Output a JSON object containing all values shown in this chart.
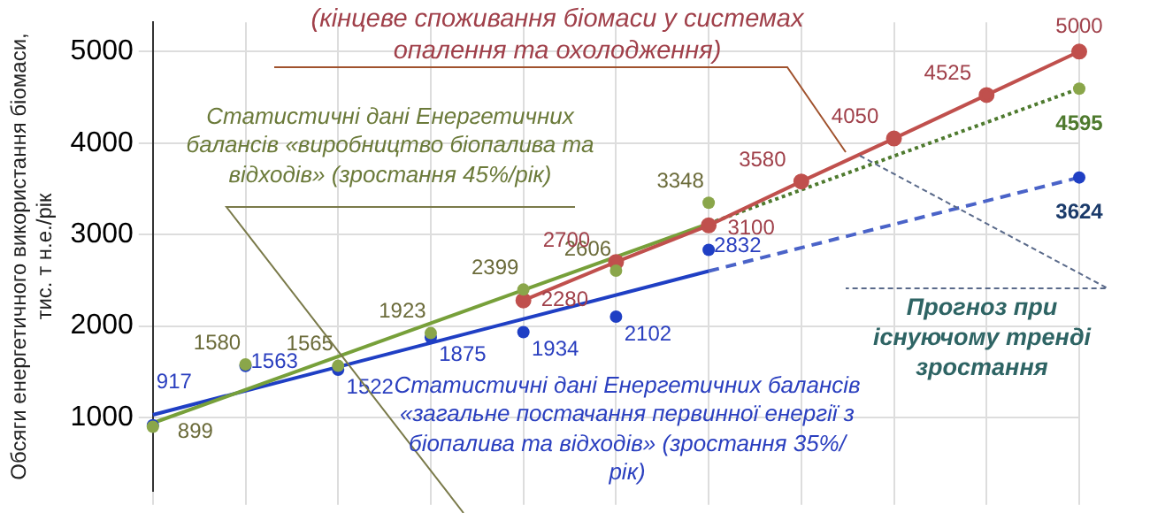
{
  "chart_data": {
    "type": "line",
    "ylabel": "Обсяги енергетичного використання біомаси, тис. т н.е./рік",
    "categories": [
      null,
      null,
      null,
      null,
      null,
      null,
      null,
      null,
      null,
      null,
      null
    ],
    "ylim": [
      200,
      5320
    ],
    "yticks": [
      1000,
      2000,
      3000,
      4000,
      5000
    ],
    "grid": true,
    "legend": false,
    "tick_labels": "y",
    "series": [
      {
        "type": "scatter",
        "color": "#8aa64a",
        "marker": "circle",
        "values": [
          899,
          1580,
          1565,
          1923,
          2399,
          2606,
          3348,
          null,
          null,
          null,
          4595
        ],
        "value_labels": [
          "899",
          "1580",
          "1565",
          "1923",
          "2399",
          "2606",
          "3348",
          null,
          null,
          null,
          "4595"
        ]
      },
      {
        "type": "scatter",
        "color": "#1f3fc4",
        "marker": "circle",
        "values": [
          917,
          1563,
          1522,
          1875,
          1934,
          2102,
          2832,
          null,
          null,
          null,
          3624
        ],
        "value_labels": [
          "917",
          "1563",
          "1522",
          "1875",
          "1934",
          "2102",
          "2832",
          null,
          null,
          null,
          "3624"
        ]
      },
      {
        "type": "line",
        "color": "#c0504d",
        "marker": "circle",
        "line_style": "solid",
        "values": [
          null,
          null,
          null,
          null,
          2280,
          2700,
          3100,
          3580,
          4050,
          4525,
          5000
        ],
        "value_labels": [
          null,
          null,
          null,
          null,
          "2280",
          "2700",
          "3100",
          "3580",
          "4050",
          "4525",
          "5000"
        ]
      },
      {
        "type": "line",
        "color": "#77a03a",
        "marker": "none",
        "line_style": "solid",
        "values": [
          940,
          null,
          null,
          null,
          null,
          null,
          3120,
          null,
          null,
          null,
          null
        ]
      },
      {
        "type": "line",
        "color": "#4e7a2e",
        "marker": "none",
        "line_style": "dotted",
        "values": [
          null,
          null,
          null,
          null,
          null,
          null,
          3120,
          null,
          null,
          null,
          4595
        ]
      },
      {
        "type": "line",
        "color": "#1f3fc4",
        "marker": "none",
        "line_style": "solid",
        "values": [
          1030,
          null,
          null,
          null,
          null,
          null,
          2600,
          null,
          null,
          null,
          null
        ]
      },
      {
        "type": "line",
        "color": "#4a63c8",
        "marker": "none",
        "line_style": "dashed",
        "values": [
          null,
          null,
          null,
          null,
          null,
          null,
          2600,
          null,
          null,
          null,
          3624
        ]
      }
    ],
    "annotations": [
      "(кінцеве споживання біомаси у системах опалення та охолодження)",
      "Статистичні дані Енергетичних балансів «виробництво біопалива та відходів» (зростання 45%/рік)",
      "Статистичні дані Енергетичних балансів «загальне постачання первинної енергії з біопалива та відходів» (зростання 35%/рік)",
      "Прогноз при існуючому тренді зростання"
    ]
  }
}
